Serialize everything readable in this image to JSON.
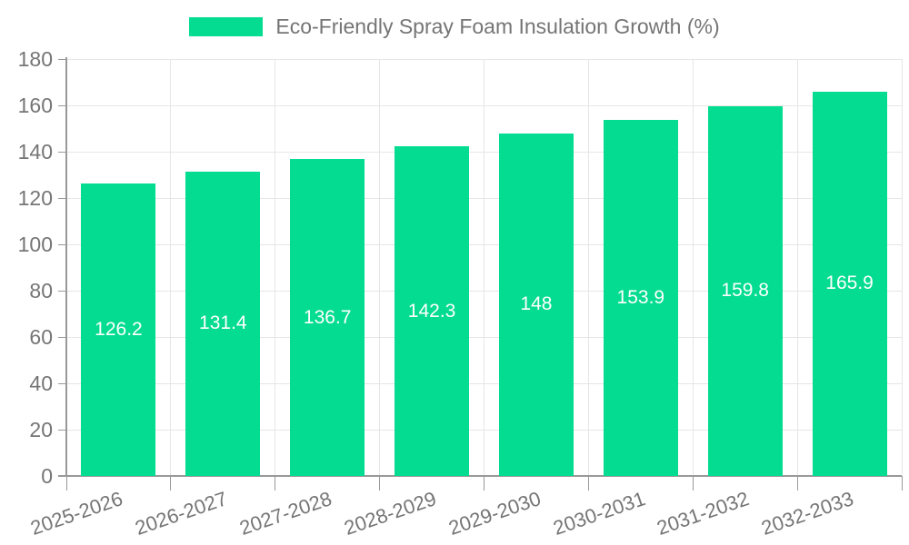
{
  "legend": {
    "label": "Eco-Friendly Spray Foam Insulation Growth (%)"
  },
  "chart_data": {
    "type": "bar",
    "title": "Eco-Friendly Spray Foam Insulation Growth (%)",
    "categories": [
      "2025-2026",
      "2026-2027",
      "2027-2028",
      "2028-2029",
      "2029-2030",
      "2030-2031",
      "2031-2032",
      "2032-2033"
    ],
    "values": [
      126.2,
      131.4,
      136.7,
      142.3,
      148,
      153.9,
      159.8,
      165.9
    ],
    "value_labels": [
      "126.2",
      "131.4",
      "136.7",
      "142.3",
      "148",
      "153.9",
      "159.8",
      "165.9"
    ],
    "xlabel": "",
    "ylabel": "",
    "ylim": [
      0,
      180
    ],
    "ytick_step": 20,
    "yticks": [
      0,
      20,
      40,
      60,
      80,
      100,
      120,
      140,
      160,
      180
    ],
    "grid": true,
    "legend_position": "top",
    "colors": {
      "bar": "#03dc91",
      "axis": "#999999",
      "gridline": "#e6e6e6",
      "tick_label": "#757575",
      "value_label": "#ffffff"
    }
  }
}
